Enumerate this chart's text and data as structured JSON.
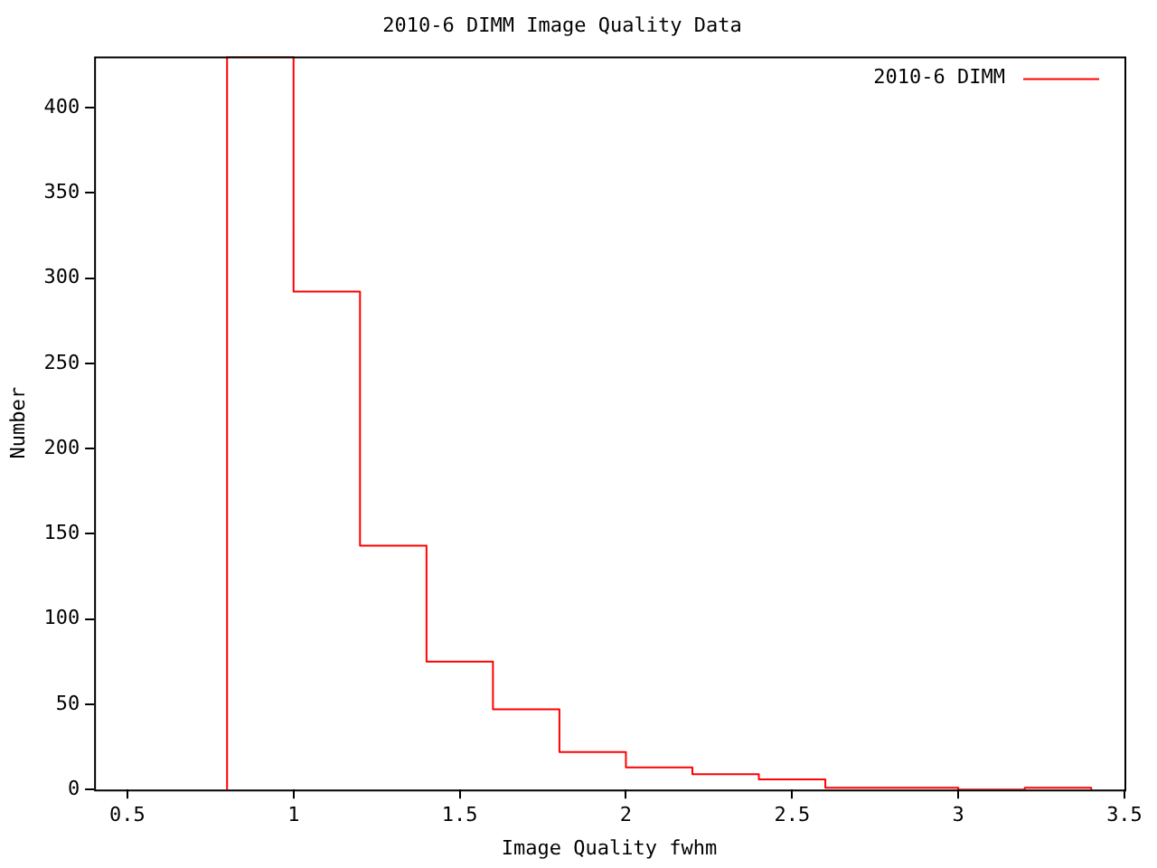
{
  "chart_data": {
    "type": "histogram",
    "title": "2010-6 DIMM Image Quality Data",
    "xlabel": "Image Quality fwhm",
    "ylabel": "Number",
    "bins": [
      0.8,
      1.0,
      1.2,
      1.4,
      1.6,
      1.8,
      2.0,
      2.2,
      2.4,
      2.6,
      2.8,
      3.0,
      3.2,
      3.4
    ],
    "series": [
      {
        "name": "2010-6 DIMM",
        "color": "#ff0000",
        "values": [
          430,
          292,
          143,
          75,
          47,
          22,
          13,
          9,
          6,
          1,
          1,
          0,
          1
        ]
      }
    ],
    "xlim": [
      0.4,
      3.5
    ],
    "xticks": [
      0.5,
      1,
      1.5,
      2,
      2.5,
      3,
      3.5
    ],
    "ylim": [
      0,
      430
    ],
    "yticks": [
      0,
      50,
      100,
      150,
      200,
      250,
      300,
      350,
      400
    ],
    "grid": false,
    "legend": "top right"
  }
}
